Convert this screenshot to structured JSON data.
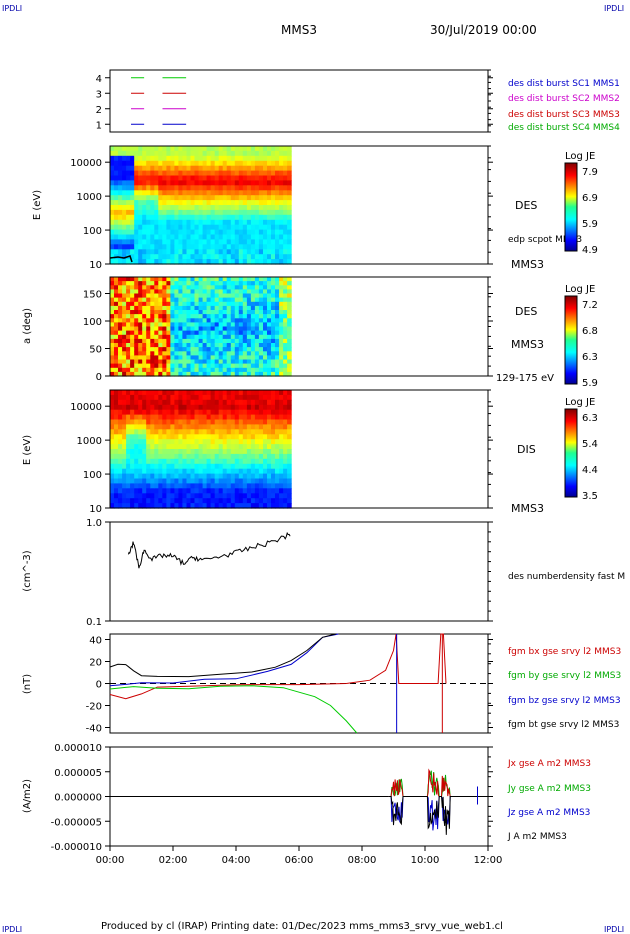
{
  "header": {
    "corner_left": "IPDLI",
    "corner_right": "IPDLI",
    "spacecraft": "MMS3",
    "date": "30/Jul/2019 00:00"
  },
  "footer": {
    "text": "Produced by cl (IRAP)   Printing date: 01/Dec/2023   mms_mms3_srvy_vue_web1.cl",
    "corner_left": "IPDLI",
    "corner_right": "IPDLI"
  },
  "chart_data": [
    {
      "type": "line",
      "panel": "status",
      "ylim": [
        0.5,
        4.5
      ],
      "yticks": [
        "1",
        "2",
        "3",
        "4"
      ],
      "x_range": [
        "00:40",
        "02:25"
      ],
      "series": [
        {
          "name": "des dist burst SC1 MMS1",
          "y": 1,
          "color": "#0000cc"
        },
        {
          "name": "des dist burst SC2 MMS2",
          "y": 2,
          "color": "#cc00cc"
        },
        {
          "name": "des dist burst SC3 MMS3",
          "y": 3,
          "color": "#cc0000"
        },
        {
          "name": "des dist burst SC4 MMS4",
          "y": 4,
          "color": "#00cc00"
        }
      ]
    },
    {
      "type": "heatmap",
      "panel": "des-energy",
      "ylabel": "E (eV)",
      "yscale": "log",
      "ylim": [
        10,
        30000
      ],
      "yticks": [
        "10",
        "100",
        "1000",
        "10000"
      ],
      "data_end": "05:45",
      "instrument": "DES",
      "sc": "MMS3",
      "overlay": "edp scpot MMS3",
      "colorbar": {
        "title": "Log JE",
        "max": "7.9",
        "mid1": "6.9",
        "mid2": "5.9",
        "min": "4.9"
      }
    },
    {
      "type": "heatmap",
      "panel": "des-pitch",
      "ylabel": "a (deg)",
      "ylim": [
        0,
        180
      ],
      "yticks": [
        "0",
        "50",
        "100",
        "150"
      ],
      "data_end": "05:45",
      "instrument": "DES",
      "sc": "MMS3",
      "energy_band": "129-175 eV",
      "colorbar": {
        "title": "Log JE",
        "max": "7.2",
        "mid1": "6.8",
        "mid2": "6.3",
        "min": "5.9"
      }
    },
    {
      "type": "heatmap",
      "panel": "dis-energy",
      "ylabel": "E (eV)",
      "yscale": "log",
      "ylim": [
        10,
        30000
      ],
      "yticks": [
        "10",
        "100",
        "1000",
        "10000"
      ],
      "data_end": "05:45",
      "instrument": "DIS",
      "sc": "MMS3",
      "colorbar": {
        "title": "Log JE",
        "max": "6.3",
        "mid1": "5.4",
        "mid2": "4.4",
        "min": "3.5"
      }
    },
    {
      "type": "line",
      "panel": "density",
      "ylabel": "(cm^-3)",
      "yscale": "log",
      "ylim": [
        0.1,
        1.0
      ],
      "yticks": [
        "0.1",
        "1.0"
      ],
      "series": [
        {
          "name": "des numberdensity fast M",
          "color": "#000000",
          "x": [
            "00:35",
            "00:45",
            "00:55",
            "01:05",
            "01:20",
            "01:40",
            "02:00",
            "02:20",
            "02:40",
            "03:00",
            "03:30",
            "04:00",
            "04:30",
            "05:00",
            "05:30",
            "05:45"
          ],
          "y": [
            0.45,
            0.62,
            0.33,
            0.52,
            0.42,
            0.46,
            0.45,
            0.38,
            0.44,
            0.41,
            0.45,
            0.49,
            0.55,
            0.61,
            0.7,
            0.76
          ]
        }
      ]
    },
    {
      "type": "line",
      "panel": "fgm",
      "ylabel": "(nT)",
      "ylim": [
        -45,
        45
      ],
      "yticks": [
        "-40",
        "-20",
        "0",
        "20",
        "40"
      ],
      "series": [
        {
          "name": "fgm bx gse srvy l2 MMS3",
          "color": "#cc0000",
          "x": [
            "00:00",
            "00:30",
            "01:00",
            "01:30",
            "02:30",
            "04:00",
            "06:00",
            "07:30",
            "08:15",
            "08:45",
            "09:00",
            "09:05",
            "09:10",
            "10:25",
            "10:30",
            "10:35",
            "10:40"
          ],
          "y": [
            -10,
            -14,
            -9,
            -3,
            -3,
            -2,
            -1,
            0,
            3,
            12,
            30,
            48,
            0,
            0,
            48,
            48,
            0
          ]
        },
        {
          "name": "fgm by gse srvy l2 MMS3",
          "color": "#00cc00",
          "x": [
            "00:00",
            "00:45",
            "01:30",
            "02:30",
            "03:30",
            "04:30",
            "05:30",
            "06:30",
            "07:00",
            "07:30",
            "07:50"
          ],
          "y": [
            -5,
            -3,
            -5,
            -4,
            -3,
            -3,
            -4,
            -12,
            -20,
            -34,
            -46
          ]
        },
        {
          "name": "fgm bz gse srvy l2 MMS3",
          "color": "#0000cc",
          "x": [
            "00:00",
            "00:30",
            "01:00",
            "02:00",
            "03:00",
            "04:00",
            "05:00",
            "05:45",
            "06:15",
            "06:45",
            "07:15"
          ],
          "y": [
            -2,
            0,
            0,
            1,
            3,
            5,
            10,
            18,
            28,
            42,
            50
          ]
        },
        {
          "name": "fgm bt gse srvy l2 MMS3",
          "color": "#000000",
          "x": [
            "00:00",
            "00:15",
            "00:30",
            "00:45",
            "01:00",
            "01:30",
            "02:30",
            "03:30",
            "04:30",
            "05:15",
            "05:45",
            "06:15",
            "06:45",
            "07:10"
          ],
          "y": [
            15,
            18,
            16,
            12,
            8,
            6,
            7,
            8,
            10,
            14,
            20,
            30,
            42,
            50
          ]
        }
      ]
    },
    {
      "type": "line",
      "panel": "current",
      "ylabel": "(A/m2)",
      "ylim": [
        -1e-05,
        1e-05
      ],
      "yticks": [
        "-0.000010",
        "-0.000005",
        "0.000000",
        "0.000005",
        "0.000010"
      ],
      "xticks": [
        "00:00",
        "02:00",
        "04:00",
        "06:00",
        "08:00",
        "10:00",
        "12:00"
      ],
      "series": [
        {
          "name": "Jx gse A m2 MMS3",
          "color": "#cc0000"
        },
        {
          "name": "Jy gse A m2 MMS3",
          "color": "#00aa00"
        },
        {
          "name": "Jz gse A m2 MMS3",
          "color": "#0000cc"
        },
        {
          "name": "J A m2 MMS3",
          "color": "#000000"
        }
      ]
    }
  ]
}
